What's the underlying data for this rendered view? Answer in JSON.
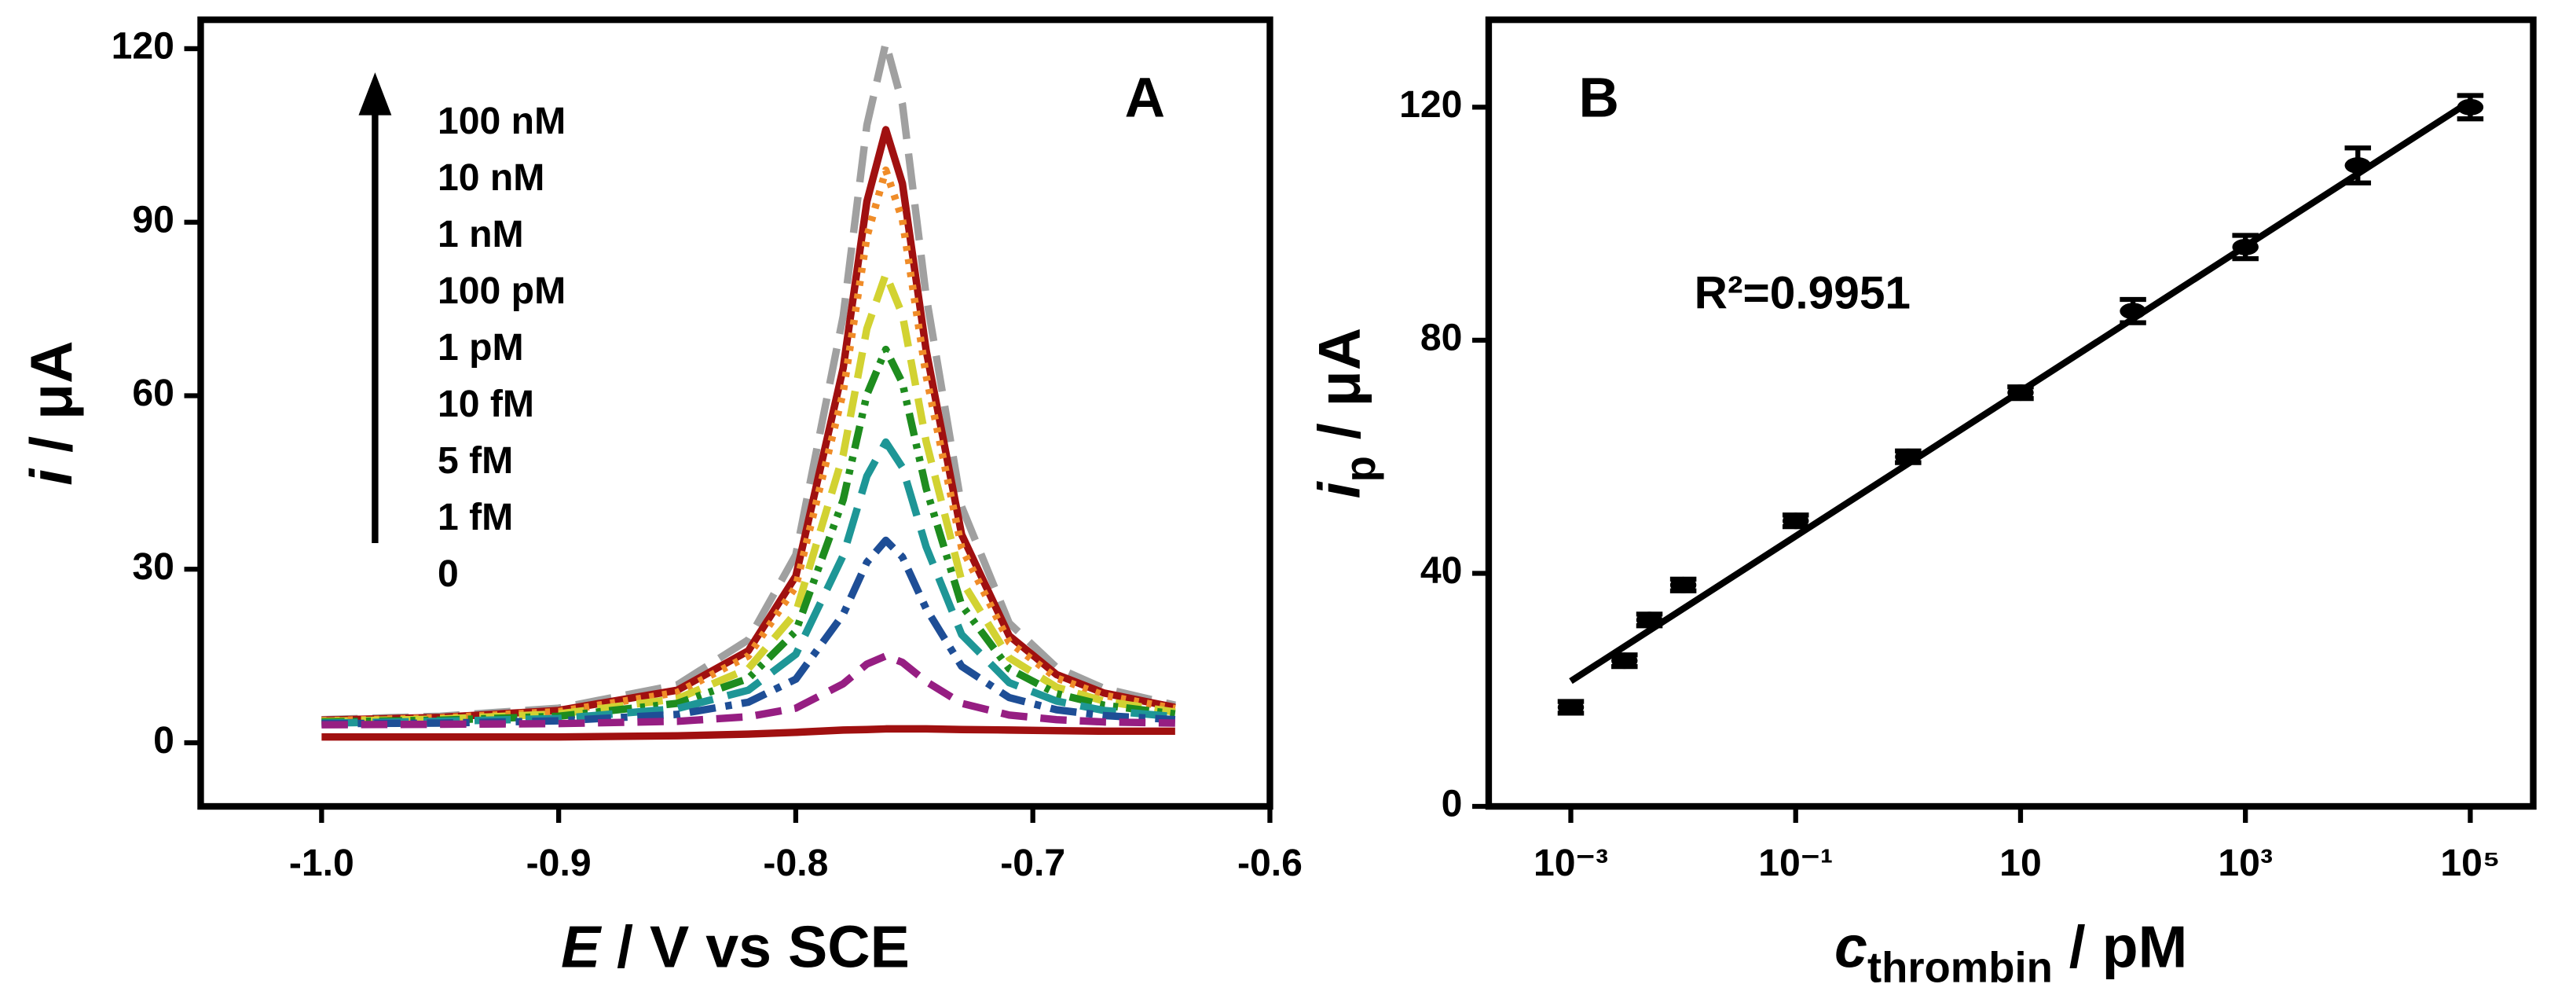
{
  "chart_data": [
    {
      "type": "line",
      "panel_label": "A",
      "x_label": {
        "symbol": "E",
        "unit": " / V vs SCE"
      },
      "y_label": {
        "symbol": "i",
        "unit": " / μA"
      },
      "xlim": [
        -1.051,
        -0.6
      ],
      "ylim": [
        -11,
        125
      ],
      "xticks": [
        {
          "value": -1,
          "label": "-1.0"
        },
        -0.9,
        -0.8,
        -0.7,
        -0.6
      ],
      "yticks": [
        0,
        30,
        60,
        90,
        120
      ],
      "x": [
        -1.0,
        -0.95,
        -0.9,
        -0.85,
        -0.82,
        -0.8,
        -0.78,
        -0.77,
        -0.762,
        -0.755,
        -0.745,
        -0.73,
        -0.71,
        -0.69,
        -0.67,
        -0.64
      ],
      "series": [
        {
          "name": "100 nM",
          "color": "#a0a0a0",
          "style": "longdash",
          "values": [
            4.0,
            4.6,
            6.0,
            10.0,
            17.8,
            32.5,
            73.8,
            106.8,
            121,
            110.4,
            77.3,
            40.8,
            20.7,
            13.0,
            9.4,
            6.5
          ]
        },
        {
          "name": "10 nM",
          "color": "#a01010",
          "style": "solid",
          "values": [
            3.9,
            4.4,
            5.6,
            9.1,
            15.9,
            28.8,
            64.8,
            93.6,
            106,
            96.7,
            67.9,
            36.0,
            18.5,
            11.8,
            8.6,
            6.1
          ]
        },
        {
          "name": "1 nM",
          "color": "#f08c28",
          "style": "dotted",
          "values": [
            3.8,
            4.3,
            5.4,
            8.7,
            15.0,
            27.0,
            60.6,
            87.5,
            99,
            90.4,
            63.5,
            33.7,
            17.4,
            11.2,
            8.2,
            5.9
          ]
        },
        {
          "name": "100 pM",
          "color": "#d2d232",
          "style": "dashed",
          "values": [
            3.7,
            4.1,
            5.0,
            7.6,
            12.8,
            22.5,
            49.8,
            71.6,
            81,
            74.0,
            52.1,
            28.0,
            14.7,
            9.6,
            7.2,
            5.3
          ]
        },
        {
          "name": "1 pM",
          "color": "#1e8c1e",
          "style": "dashdotdot",
          "values": [
            3.6,
            3.9,
            4.6,
            6.8,
            11.1,
            19.3,
            42.0,
            60.2,
            68,
            62.2,
            44.0,
            23.8,
            12.8,
            8.5,
            6.5,
            5.0
          ]
        },
        {
          "name": "10 fM",
          "color": "#1e9696",
          "style": "longdash",
          "values": [
            3.4,
            3.7,
            4.2,
            5.9,
            9.1,
            15.3,
            32.4,
            46.1,
            52,
            47.6,
            33.9,
            18.7,
            10.4,
            7.2,
            5.6,
            4.5
          ]
        },
        {
          "name": "5 fM",
          "color": "#1e4e96",
          "style": "dashdot",
          "values": [
            3.3,
            3.4,
            3.8,
            4.9,
            7.0,
            11.0,
            22.2,
            31.2,
            35,
            32.1,
            23.2,
            13.2,
            7.8,
            5.7,
            4.7,
            4.0
          ]
        },
        {
          "name": "1 fM",
          "color": "#961e82",
          "style": "dashed",
          "values": [
            3.1,
            3.2,
            3.3,
            3.7,
            4.5,
            6.0,
            10.2,
            13.6,
            15,
            13.9,
            10.6,
            6.8,
            4.8,
            4.0,
            3.6,
            3.4
          ]
        },
        {
          "name": "0",
          "color": "#a01010",
          "style": "solid",
          "values": [
            1,
            1,
            1,
            1.2,
            1.5,
            1.8,
            2.2,
            2.3,
            2.4,
            2.4,
            2.4,
            2.3,
            2.2,
            2.1,
            2.0,
            2.0
          ]
        }
      ]
    },
    {
      "type": "scatter",
      "panel_label": "B",
      "x_label": {
        "symbol": "c",
        "sub": "thrombin",
        "unit": " / pM"
      },
      "y_label": {
        "symbol": "i",
        "sub": "p",
        "unit": " / μA"
      },
      "xscale": "log",
      "xlim": [
        0.000186,
        363000
      ],
      "ylim": [
        0,
        135
      ],
      "xticks": [
        {
          "value": 0.001,
          "label": "10⁻³"
        },
        {
          "value": 0.1,
          "label": "10⁻¹"
        },
        10,
        {
          "value": 1000,
          "label": "10³"
        },
        {
          "value": 100000,
          "label": "10⁵"
        }
      ],
      "yticks": [
        0,
        40,
        80,
        120
      ],
      "annotation": "R²=0.9951",
      "series": [
        {
          "color": "#000000",
          "x": [
            0.001,
            0.003,
            0.005,
            0.01,
            0.1,
            1,
            10,
            100,
            1000,
            10000,
            100000
          ],
          "values": [
            17,
            25,
            32,
            38,
            49,
            60,
            71,
            85,
            96,
            110,
            120
          ],
          "errors": [
            1,
            1,
            1,
            1,
            1,
            1,
            1,
            2,
            2,
            3,
            2
          ]
        }
      ],
      "fit": {
        "x": [
          0.001,
          100000
        ],
        "y": [
          21.5,
          121
        ],
        "color": "#000000"
      }
    }
  ]
}
